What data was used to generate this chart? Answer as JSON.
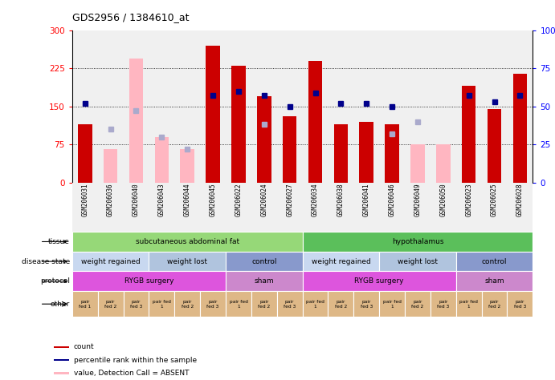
{
  "title": "GDS2956 / 1384610_at",
  "samples": [
    "GSM206031",
    "GSM206036",
    "GSM206040",
    "GSM206043",
    "GSM206044",
    "GSM206045",
    "GSM206022",
    "GSM206024",
    "GSM206027",
    "GSM206034",
    "GSM206038",
    "GSM206041",
    "GSM206046",
    "GSM206049",
    "GSM206050",
    "GSM206023",
    "GSM206025",
    "GSM206028"
  ],
  "count_values": [
    115,
    null,
    null,
    null,
    null,
    270,
    230,
    170,
    130,
    240,
    115,
    120,
    115,
    null,
    null,
    190,
    145,
    215
  ],
  "count_absent": [
    null,
    65,
    245,
    90,
    65,
    null,
    null,
    null,
    null,
    null,
    null,
    null,
    null,
    75,
    75,
    null,
    null,
    null
  ],
  "rank_present": [
    52,
    null,
    null,
    null,
    null,
    57,
    60,
    57,
    50,
    59,
    52,
    52,
    50,
    null,
    null,
    57,
    53,
    57
  ],
  "rank_absent": [
    null,
    35,
    47,
    30,
    22,
    null,
    null,
    38,
    null,
    null,
    null,
    null,
    32,
    40,
    null,
    null,
    null,
    null
  ],
  "ylim_left": [
    0,
    300
  ],
  "ylim_right": [
    0,
    100
  ],
  "yticks_left": [
    0,
    75,
    150,
    225,
    300
  ],
  "yticks_right": [
    0,
    25,
    50,
    75,
    100
  ],
  "hlines": [
    75,
    150,
    225
  ],
  "tissue_groups": [
    {
      "label": "subcutaneous abdominal fat",
      "start": 0,
      "end": 9,
      "color": "#96D878"
    },
    {
      "label": "hypothalamus",
      "start": 9,
      "end": 18,
      "color": "#5BBF5B"
    }
  ],
  "disease_groups": [
    {
      "label": "weight regained",
      "start": 0,
      "end": 3,
      "color": "#C8D8F0"
    },
    {
      "label": "weight lost",
      "start": 3,
      "end": 6,
      "color": "#B0C4DE"
    },
    {
      "label": "control",
      "start": 6,
      "end": 9,
      "color": "#8899CC"
    },
    {
      "label": "weight regained",
      "start": 9,
      "end": 12,
      "color": "#C8D8F0"
    },
    {
      "label": "weight lost",
      "start": 12,
      "end": 15,
      "color": "#B0C4DE"
    },
    {
      "label": "control",
      "start": 15,
      "end": 18,
      "color": "#8899CC"
    }
  ],
  "protocol_groups": [
    {
      "label": "RYGB surgery",
      "start": 0,
      "end": 6,
      "color": "#DD55DD"
    },
    {
      "label": "sham",
      "start": 6,
      "end": 9,
      "color": "#CC88CC"
    },
    {
      "label": "RYGB surgery",
      "start": 9,
      "end": 15,
      "color": "#DD55DD"
    },
    {
      "label": "sham",
      "start": 15,
      "end": 18,
      "color": "#CC88CC"
    }
  ],
  "other_labels": [
    "pair\nfed 1",
    "pair\nfed 2",
    "pair\nfed 3",
    "pair fed\n1",
    "pair\nfed 2",
    "pair\nfed 3",
    "pair fed\n1",
    "pair\nfed 2",
    "pair\nfed 3",
    "pair fed\n1",
    "pair\nfed 2",
    "pair\nfed 3",
    "pair fed\n1",
    "pair\nfed 2",
    "pair\nfed 3",
    "pair fed\n1",
    "pair\nfed 2",
    "pair\nfed 3"
  ],
  "other_color": "#DEB887",
  "bar_width": 0.55,
  "count_color": "#CC0000",
  "count_absent_color": "#FFB6C1",
  "rank_present_color": "#00008B",
  "rank_absent_color": "#AAAACC",
  "bg_color": "#F0F0F0"
}
